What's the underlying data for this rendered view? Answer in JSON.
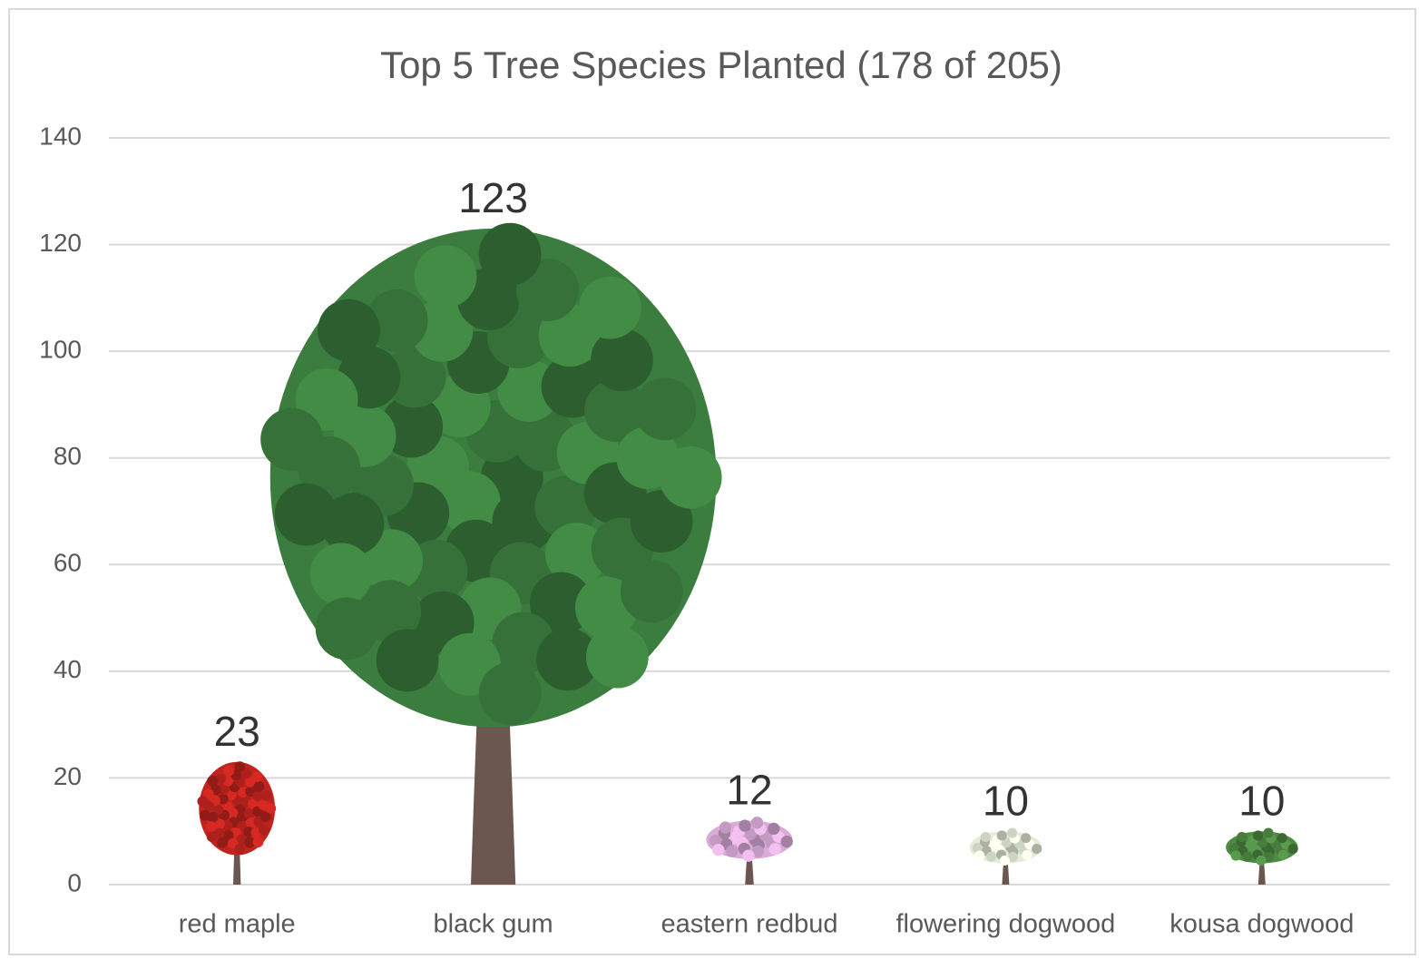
{
  "chart_data": {
    "type": "bar",
    "title": "Top 5 Tree Species Planted (178 of 205)",
    "categories": [
      "red maple",
      "black gum",
      "eastern redbud",
      "flowering dogwood",
      "kousa dogwood"
    ],
    "values": [
      23,
      123,
      12,
      10,
      10
    ],
    "colors": [
      "#c0241e",
      "#3b7d3e",
      "#d9abd6",
      "#e4ecd8",
      "#4f8a44"
    ],
    "ylim": [
      0,
      140
    ],
    "yticks": [
      0,
      20,
      40,
      60,
      80,
      100,
      120,
      140
    ],
    "grid": true
  }
}
